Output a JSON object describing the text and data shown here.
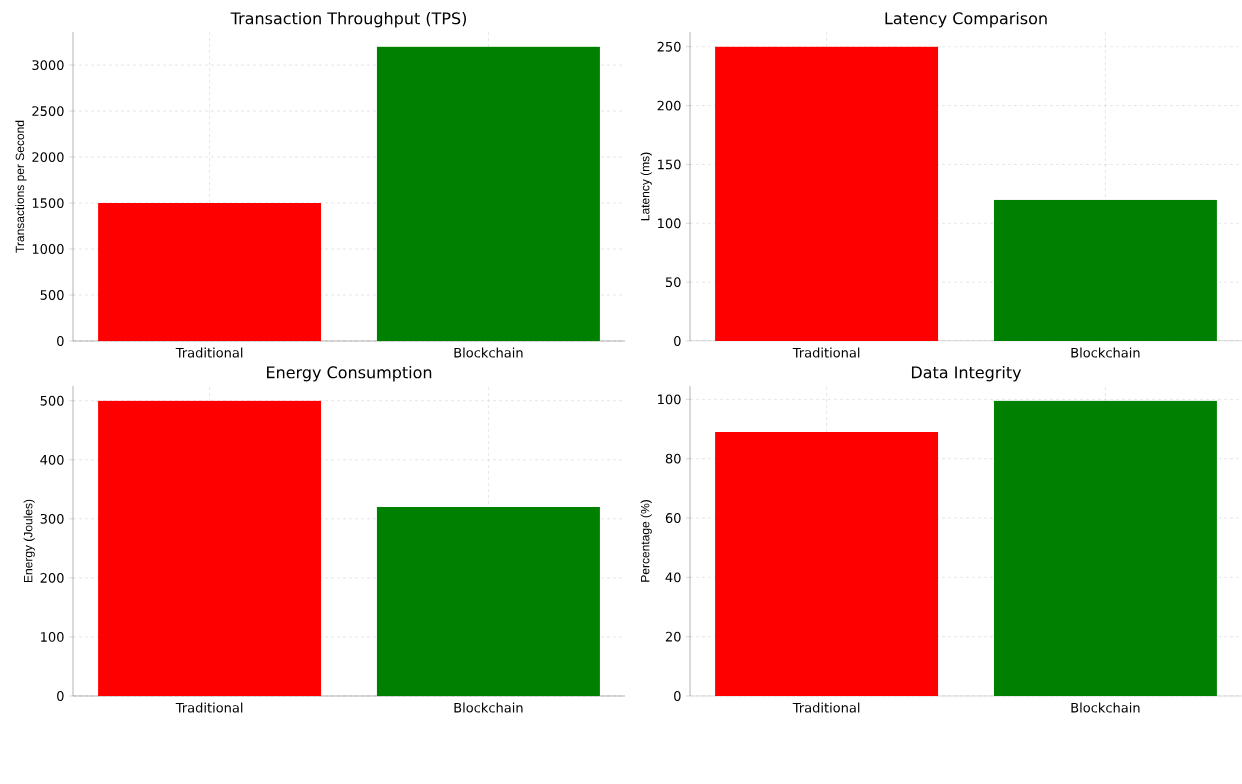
{
  "chart_data": [
    {
      "type": "bar",
      "title": "Transaction Throughput (TPS)",
      "ylabel": "Transactions per Second",
      "categories": [
        "Traditional",
        "Blockchain"
      ],
      "values": [
        1500,
        3200
      ],
      "colors": [
        "#ff0000",
        "#008000"
      ],
      "ylim": [
        0,
        3360
      ],
      "yticks": [
        0,
        500,
        1000,
        1500,
        2000,
        2500,
        3000
      ],
      "grid": true
    },
    {
      "type": "bar",
      "title": "Latency Comparison",
      "ylabel": "Latency (ms)",
      "categories": [
        "Traditional",
        "Blockchain"
      ],
      "values": [
        250,
        120
      ],
      "colors": [
        "#ff0000",
        "#008000"
      ],
      "ylim": [
        0,
        262.5
      ],
      "yticks": [
        0,
        50,
        100,
        150,
        200,
        250
      ],
      "grid": true
    },
    {
      "type": "bar",
      "title": "Energy Consumption",
      "ylabel": "Energy (Joules)",
      "categories": [
        "Traditional",
        "Blockchain"
      ],
      "values": [
        500,
        320
      ],
      "colors": [
        "#ff0000",
        "#008000"
      ],
      "ylim": [
        0,
        525
      ],
      "yticks": [
        0,
        100,
        200,
        300,
        400,
        500
      ],
      "grid": true
    },
    {
      "type": "bar",
      "title": "Data Integrity",
      "ylabel": "Percentage (%)",
      "categories": [
        "Traditional",
        "Blockchain"
      ],
      "values": [
        89,
        99.5
      ],
      "colors": [
        "#ff0000",
        "#008000"
      ],
      "ylim": [
        0,
        104.5
      ],
      "yticks": [
        0,
        20,
        40,
        60,
        80,
        100
      ],
      "grid": true
    }
  ]
}
